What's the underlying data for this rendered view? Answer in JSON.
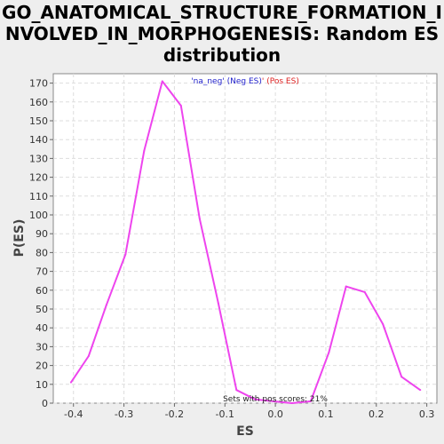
{
  "chart_data": {
    "type": "line",
    "title": "GO_ANATOMICAL_STRUCTURE_FORMATION_INVOLVED_IN_MORPHOGENESIS: Random ES distribution",
    "xlabel": "ES",
    "ylabel": "P(ES)",
    "xlim": [
      -0.44,
      0.32
    ],
    "ylim": [
      0,
      175
    ],
    "xticks": [
      -0.4,
      -0.3,
      -0.2,
      -0.1,
      0.0,
      0.1,
      0.2,
      0.3
    ],
    "xtick_labels": [
      "-0.4",
      "-0.3",
      "-0.2",
      "-0.1",
      "0.0",
      "0.1",
      "0.2",
      "0.3"
    ],
    "yticks": [
      0,
      10,
      20,
      30,
      40,
      50,
      60,
      70,
      80,
      90,
      100,
      110,
      120,
      130,
      140,
      150,
      160,
      170
    ],
    "grid": true,
    "line_color": "#ee44ee",
    "legend": {
      "placement": "top-center",
      "part1": "'na_neg' (Neg ES)",
      "part1_color": "#2222cc",
      "part2": "' (Pos ES)",
      "part2_color": "#dd2222"
    },
    "annotation": "Sets with pos scores: 21%",
    "series": [
      {
        "x": [
          -0.405,
          -0.37,
          -0.335,
          -0.297,
          -0.26,
          -0.224,
          -0.187,
          -0.15,
          -0.113,
          -0.077,
          -0.04,
          -0.004,
          0.033,
          0.07,
          0.106,
          0.14,
          0.177,
          0.213,
          0.25,
          0.287
        ],
        "y": [
          11,
          25,
          52,
          79,
          134,
          171,
          158,
          98,
          53,
          7,
          2,
          1,
          0,
          1,
          27,
          62,
          59,
          42,
          14,
          7
        ]
      }
    ]
  }
}
